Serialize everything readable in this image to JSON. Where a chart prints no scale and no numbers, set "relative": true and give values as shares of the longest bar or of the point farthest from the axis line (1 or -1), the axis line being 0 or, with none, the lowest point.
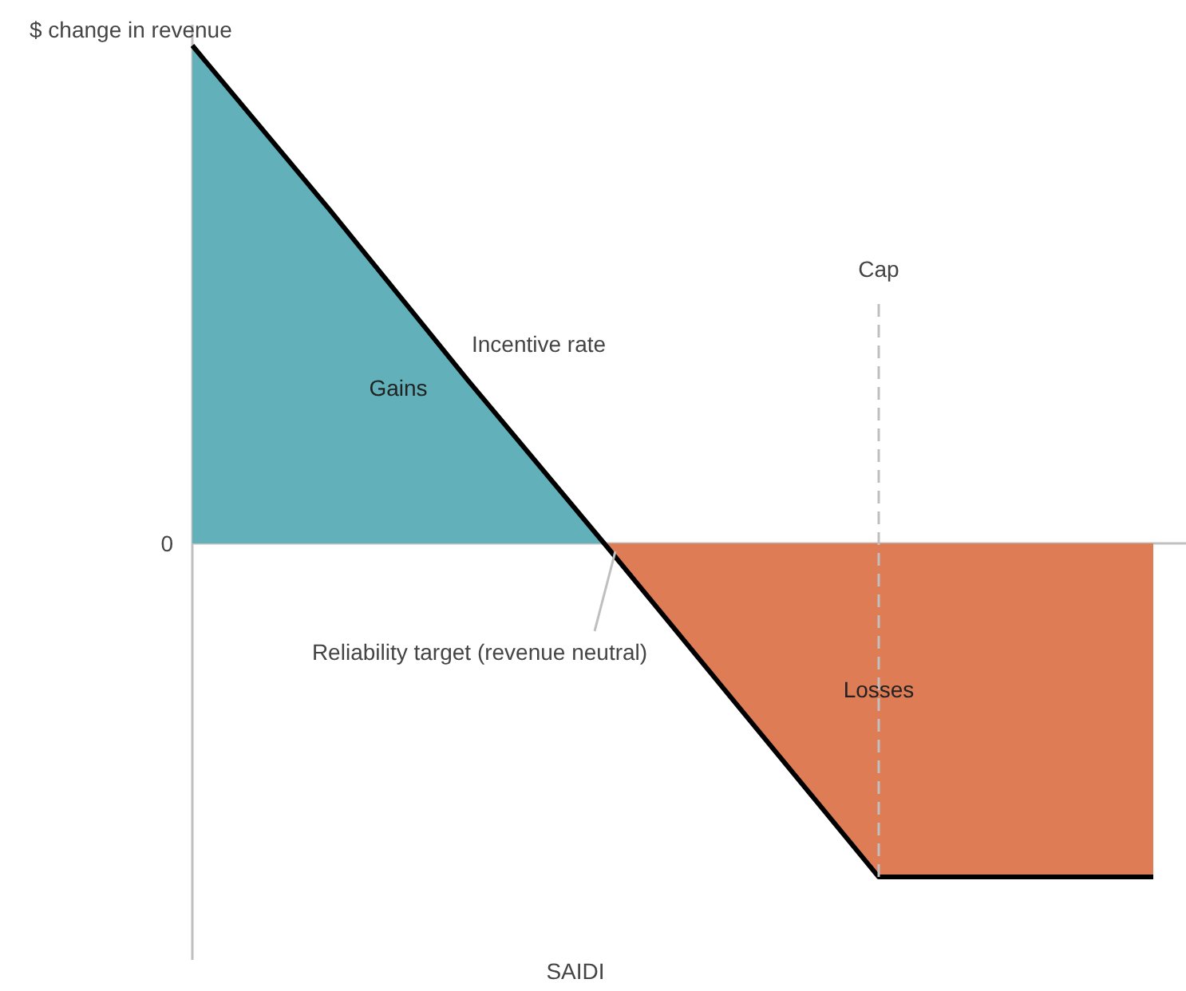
{
  "chart_data": {
    "type": "area",
    "relative": true,
    "categories": [
      null,
      null,
      null,
      null,
      null,
      null,
      null,
      null
    ],
    "xlabel": "SAIDI",
    "ylabel": "$ change in revenue",
    "series": [
      {
        "name": "Gains",
        "color": "#62b0ba",
        "values": [
          1,
          0.67,
          0.33,
          0,
          null,
          null,
          null,
          null
        ]
      },
      {
        "name": "Losses",
        "color": "#dd7c55",
        "values": [
          null,
          null,
          null,
          0,
          -0.335,
          -0.67,
          -0.67,
          -0.67
        ]
      },
      {
        "name": "Incentive rate",
        "type": "line",
        "color": "#000000",
        "values": [
          1,
          0.67,
          0.33,
          0,
          -0.335,
          -0.67,
          -0.67,
          -0.67
        ]
      }
    ],
    "annotations": [
      "0",
      "Reliability target (revenue neutral)",
      "Cap"
    ]
  }
}
